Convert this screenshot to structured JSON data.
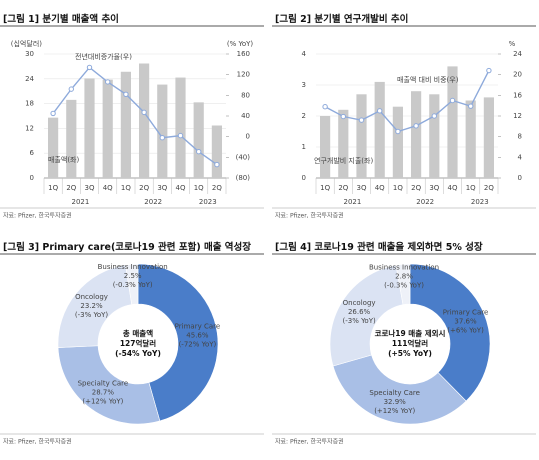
{
  "chart_data": [
    {
      "type": "bar-line",
      "title": "[그림 1] 분기별 매출액 추이",
      "y_label": "(십억달러)",
      "y2_label": "(% YoY)",
      "categories": [
        "1Q",
        "2Q",
        "3Q",
        "4Q",
        "1Q",
        "2Q",
        "3Q",
        "4Q",
        "1Q",
        "2Q"
      ],
      "years": [
        "2021",
        "2022",
        "2023"
      ],
      "series": [
        {
          "name": "매출액(좌)",
          "color": "#c9c9c9",
          "values": [
            14.6,
            18.9,
            24.1,
            23.8,
            25.7,
            27.7,
            22.6,
            24.3,
            18.3,
            12.7
          ]
        },
        {
          "name": "전년대비증가율(우)",
          "color": "#8eaadb",
          "axis": "y2",
          "values": [
            45,
            92,
            134,
            106,
            82,
            47,
            -2,
            2,
            -29,
            -54
          ]
        }
      ],
      "ylim": [
        0,
        30
      ],
      "yticks": [
        0,
        6,
        12,
        18,
        24,
        30
      ],
      "y2lim": [
        -80,
        160
      ],
      "y2ticks": [
        {
          "value": -80,
          "label": "(80)"
        },
        {
          "value": -40,
          "label": "(40)"
        },
        0,
        40,
        80,
        120,
        160
      ],
      "grid": true,
      "source": "자료: Pfizer, 한국투자증권"
    },
    {
      "type": "bar-line",
      "title": "[그림 2] 분기별 연구개발비 추이",
      "y2_label": "%",
      "categories": [
        "1Q",
        "2Q",
        "3Q",
        "4Q",
        "1Q",
        "2Q",
        "3Q",
        "4Q",
        "1Q",
        "2Q"
      ],
      "years": [
        "2021",
        "2022",
        "2023"
      ],
      "series": [
        {
          "name": "연구개발비 지출(좌)",
          "color": "#c9c9c9",
          "values": [
            2.0,
            2.2,
            2.7,
            3.1,
            2.3,
            2.8,
            2.7,
            3.6,
            2.5,
            2.6
          ]
        },
        {
          "name": "매출액 대비 비중(우)",
          "color": "#8eaadb",
          "axis": "y2",
          "values": [
            13.8,
            11.9,
            11.2,
            13.0,
            9.0,
            10.1,
            12.0,
            15.0,
            13.9,
            20.8
          ]
        }
      ],
      "ylim": [
        0,
        4
      ],
      "yticks": [
        0,
        1,
        2,
        3,
        4
      ],
      "y2lim": [
        0,
        24
      ],
      "y2ticks": [
        0,
        4,
        8,
        12,
        16,
        20,
        24
      ],
      "grid": true,
      "source": "자료: Pfizer, 한국투자증권"
    },
    {
      "type": "donut",
      "title": "[그림 3] Primary care(코로나19 관련 포함) 매출 역성장",
      "categories": [
        "Primary Care",
        "Specialty Care",
        "Oncology",
        "Business Innovation"
      ],
      "values": [
        45.6,
        28.7,
        23.2,
        2.5
      ],
      "value_labels": [
        "45.6%",
        "28.7%",
        "23.2%",
        "2.5%"
      ],
      "changes": [
        "(-72% YoY)",
        "(+12% YoY)",
        "(-3% YoY)",
        "(-0.3% YoY)"
      ],
      "colors": [
        "#4a7dc9",
        "#a9bfe6",
        "#dbe3f3",
        "#eef1f8"
      ],
      "center_text": [
        "총 매출액",
        "127억달러",
        "(-54% YoY)"
      ],
      "source": "자료: Pfizer, 한국투자증권"
    },
    {
      "type": "donut",
      "title": "[그림 4] 코로나19 관련 매출을 제외하면 5% 성장",
      "categories": [
        "Primary Care",
        "Specialty Care",
        "Oncology",
        "Business Innovation"
      ],
      "values": [
        37.6,
        32.9,
        26.6,
        2.8
      ],
      "value_labels": [
        "37.6%",
        "32.9%",
        "26.6%",
        "2.8%"
      ],
      "changes": [
        "(+6% YoY)",
        "(+12% YoY)",
        "(-3% YoY)",
        "(-0.3% YoY)"
      ],
      "colors": [
        "#4a7dc9",
        "#a9bfe6",
        "#dbe3f3",
        "#eef1f8"
      ],
      "center_text": [
        "코로나19 매출 제외시",
        "111억달러",
        "(+5% YoY)"
      ],
      "source": "자료: Pfizer, 한국투자증권"
    }
  ]
}
